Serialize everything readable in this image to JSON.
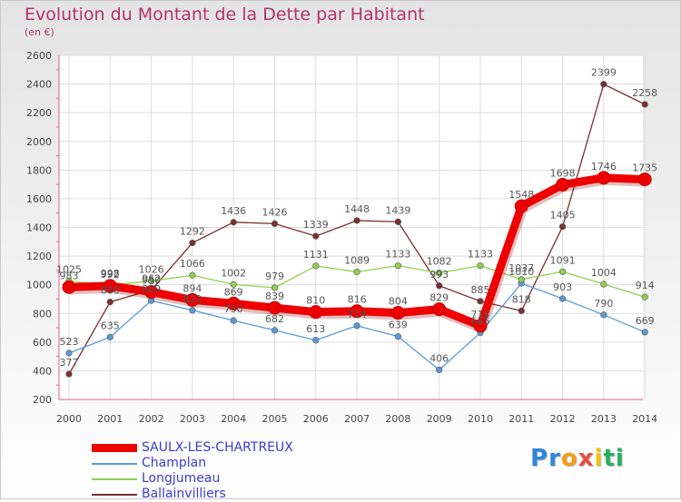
{
  "chart_data": {
    "type": "line",
    "title": "Evolution du Montant de la Dette par Habitant",
    "subtitle": "(en €)",
    "x": [
      "2000",
      "2001",
      "2002",
      "2003",
      "2004",
      "2005",
      "2006",
      "2007",
      "2008",
      "2009",
      "2010",
      "2011",
      "2012",
      "2013",
      "2014"
    ],
    "ylim": [
      200,
      2600
    ],
    "yticks": [
      "200",
      "400",
      "600",
      "800",
      "1000",
      "1200",
      "1400",
      "1600",
      "1800",
      "2000",
      "2200",
      "2400",
      "2600"
    ],
    "grid": true,
    "legend_position": "bottom-left",
    "series": [
      {
        "name": "SAULX-LES-CHARTREUX",
        "color": "#ee0000",
        "values": [
          983,
          992,
          950,
          894,
          869,
          839,
          810,
          816,
          804,
          829,
          714,
          1548,
          1698,
          1746,
          1735
        ],
        "labels": [
          "983",
          "992",
          "950",
          "894",
          "869",
          "839",
          "810",
          "816",
          "804",
          "829",
          "714",
          "1548",
          "1698",
          "1746",
          "1735"
        ]
      },
      {
        "name": "Champlan",
        "color": "#5b9bd5",
        "values": [
          523,
          635,
          889,
          822,
          750,
          682,
          613,
          714,
          639,
          406,
          665,
          1010,
          903,
          790,
          669
        ],
        "labels": [
          "523",
          "635",
          "889",
          "822",
          "750",
          "682",
          "613",
          "714",
          "639",
          "406",
          "665",
          "1010",
          "903",
          "790",
          "669"
        ]
      },
      {
        "name": "Longjumeau",
        "color": "#8fd14f",
        "values": [
          1025,
          998,
          1026,
          1066,
          1002,
          979,
          1131,
          1089,
          1133,
          1082,
          1133,
          1037,
          1091,
          1004,
          914
        ],
        "labels": [
          "1025",
          "998",
          "1026",
          "1066",
          "1002",
          "979",
          "1131",
          "1089",
          "1133",
          "1082",
          "1133",
          "1037",
          "1091",
          "1004",
          "914"
        ]
      },
      {
        "name": "Ballainvilliers",
        "color": "#7a3030",
        "values": [
          377,
          880,
          962,
          1292,
          1436,
          1426,
          1339,
          1448,
          1439,
          993,
          885,
          818,
          1405,
          2399,
          2258
        ],
        "labels": [
          "377",
          "880",
          "962",
          "1292",
          "1436",
          "1426",
          "1339",
          "1448",
          "1439",
          "993",
          "885",
          "818",
          "1405",
          "2399",
          "2258"
        ]
      }
    ]
  },
  "legend": {
    "items": [
      {
        "label": "SAULX-LES-CHARTREUX",
        "color": "#ee0000"
      },
      {
        "label": "Champlan",
        "color": "#5b9bd5"
      },
      {
        "label": "Longjumeau",
        "color": "#8fd14f"
      },
      {
        "label": "Ballainvilliers",
        "color": "#7a3030"
      }
    ]
  },
  "logo": {
    "letters": [
      "P",
      "r",
      "o",
      "x",
      "i",
      "t",
      "i"
    ],
    "colors": [
      "#2e86de",
      "#2e86de",
      "#f39c12",
      "#e74c3c",
      "#f1c40f",
      "#27ae60",
      "#27ae60"
    ]
  }
}
